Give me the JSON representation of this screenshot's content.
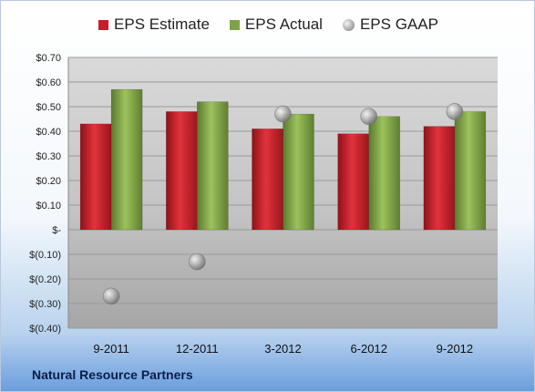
{
  "chart_data": {
    "type": "bar",
    "title": "",
    "xlabel": "",
    "ylabel": "",
    "categories": [
      "9-2011",
      "12-2011",
      "3-2012",
      "6-2012",
      "9-2012"
    ],
    "series": [
      {
        "name": "EPS Estimate",
        "kind": "bar",
        "color": "#c0202a",
        "values": [
          0.43,
          0.48,
          0.41,
          0.39,
          0.42
        ]
      },
      {
        "name": "EPS Actual",
        "kind": "bar",
        "color": "#7fa34a",
        "values": [
          0.57,
          0.52,
          0.47,
          0.46,
          0.48
        ]
      },
      {
        "name": "EPS GAAP",
        "kind": "scatter",
        "color": "#a8a8a8",
        "values": [
          -0.27,
          -0.13,
          0.47,
          0.46,
          0.48
        ]
      }
    ],
    "ylim": [
      -0.4,
      0.7
    ],
    "yticks": [
      0.7,
      0.6,
      0.5,
      0.4,
      0.3,
      0.2,
      0.1,
      0,
      -0.1,
      -0.2,
      -0.3,
      -0.4
    ],
    "ytick_labels": [
      "$0.70",
      "$0.60",
      "$0.50",
      "$0.40",
      "$0.30",
      "$0.20",
      "$0.10",
      "$-",
      "$(0.10)",
      "$(0.20)",
      "$(0.30)",
      "$(0.40)"
    ],
    "grid": true,
    "legend": "top"
  },
  "legend": {
    "estimate": "EPS Estimate",
    "actual": "EPS Actual",
    "gaap": "EPS GAAP"
  },
  "footer": {
    "company": "Natural Resource Partners"
  }
}
